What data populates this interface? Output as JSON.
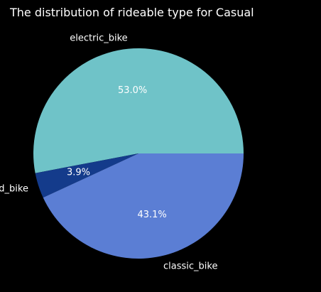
{
  "chart_data": {
    "type": "pie",
    "title": "The distribution of rideable type for Casual",
    "categories": [
      "electric_bike",
      "docked_bike",
      "classic_bike"
    ],
    "values": [
      53.0,
      3.9,
      43.1
    ],
    "value_labels": [
      "53.0%",
      "3.9%",
      "43.1%"
    ],
    "colors": [
      "#6fc3c8",
      "#143b8b",
      "#5b7ed4"
    ],
    "start_angle_deg": 0,
    "direction": "counterclockwise",
    "legend": "none"
  }
}
